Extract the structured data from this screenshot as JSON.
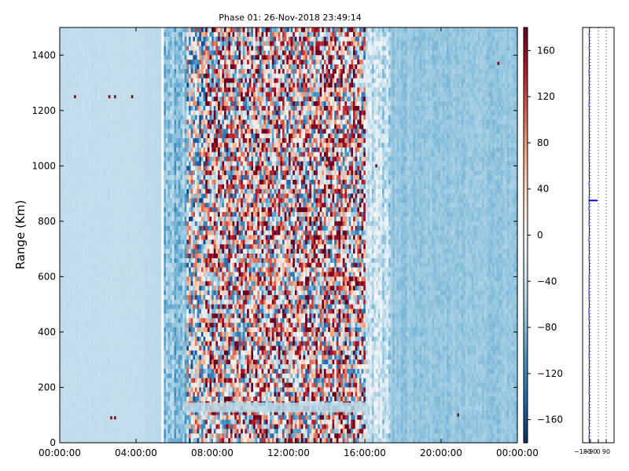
{
  "chart_data": [
    {
      "type": "heatmap",
      "title": "Phase 01: 26-Nov-2018 23:49:14",
      "xlabel": "",
      "ylabel": "Range (Km)",
      "x_tick_labels": [
        "00:00:00",
        "04:00:00",
        "08:00:00",
        "12:00:00",
        "16:00:00",
        "20:00:00",
        "00:00:00"
      ],
      "x_ticks_hours": [
        0,
        4,
        8,
        12,
        16,
        20,
        24
      ],
      "x_range_hours": [
        0,
        24
      ],
      "y_ticks": [
        0,
        200,
        400,
        600,
        800,
        1000,
        1200,
        1400
      ],
      "ylim": [
        0,
        1500
      ],
      "colorscale": "RdBu_r",
      "zlim": [
        -180,
        180
      ],
      "colorbar_ticks": [
        160,
        120,
        80,
        40,
        0,
        -40,
        -80,
        -120,
        -160
      ],
      "colorbar_tick_labels": [
        "160",
        "120",
        "80",
        "40",
        "0",
        "−40",
        "−80",
        "−120",
        "−160"
      ],
      "grid": false,
      "regions": [
        {
          "hours": [
            0.0,
            4.5
          ],
          "description": "uniform",
          "mean": -45,
          "spread": 3
        },
        {
          "hours": [
            4.5,
            5.3
          ],
          "description": "uniform",
          "mean": -48,
          "spread": 4
        },
        {
          "hours": [
            5.4,
            6.7
          ],
          "description": "noisy",
          "mean": -75,
          "spread": 55
        },
        {
          "hours": [
            6.7,
            7.6
          ],
          "description": "mixed",
          "mean": -20,
          "spread": 150
        },
        {
          "hours": [
            7.6,
            16.0
          ],
          "description": "random phase",
          "mean": 30,
          "spread": 175
        },
        {
          "hours": [
            16.0,
            17.3
          ],
          "description": "transition",
          "mean": -40,
          "spread": 70
        },
        {
          "hours": [
            17.3,
            24.0
          ],
          "description": "smooth",
          "mean": -70,
          "spread": 20
        }
      ],
      "features": [
        {
          "name": "low-altitude band",
          "range_km": [
            110,
            145
          ],
          "hours": [
            6.5,
            16.2
          ],
          "value": -50
        },
        {
          "name": "sporadic points",
          "points": [
            [
              0.8,
              1250,
              170
            ],
            [
              2.6,
              1250,
              170
            ],
            [
              2.9,
              1250,
              170
            ],
            [
              3.8,
              1250,
              170
            ],
            [
              2.7,
              90,
              170
            ],
            [
              2.9,
              90,
              170
            ],
            [
              20.9,
              100,
              170
            ],
            [
              23.0,
              1370,
              170
            ],
            [
              16.6,
              1000,
              170
            ],
            [
              14.0,
              1000,
              170
            ]
          ]
        }
      ]
    },
    {
      "type": "line",
      "title": "",
      "xlabel": "",
      "ylabel": "",
      "x_tick_labels": [
        "−180",
        "−90",
        "0",
        "90"
      ],
      "x_ticks": [
        -180,
        -90,
        0,
        90
      ],
      "xlim": [
        -180,
        180
      ],
      "ylim": [
        0,
        1500
      ],
      "grid": true,
      "grid_style": "dotted vertical",
      "series": [
        {
          "description": "near-vertical profile",
          "base_value": -105,
          "spike_range_km": 875,
          "spike_value": -10
        }
      ]
    }
  ]
}
